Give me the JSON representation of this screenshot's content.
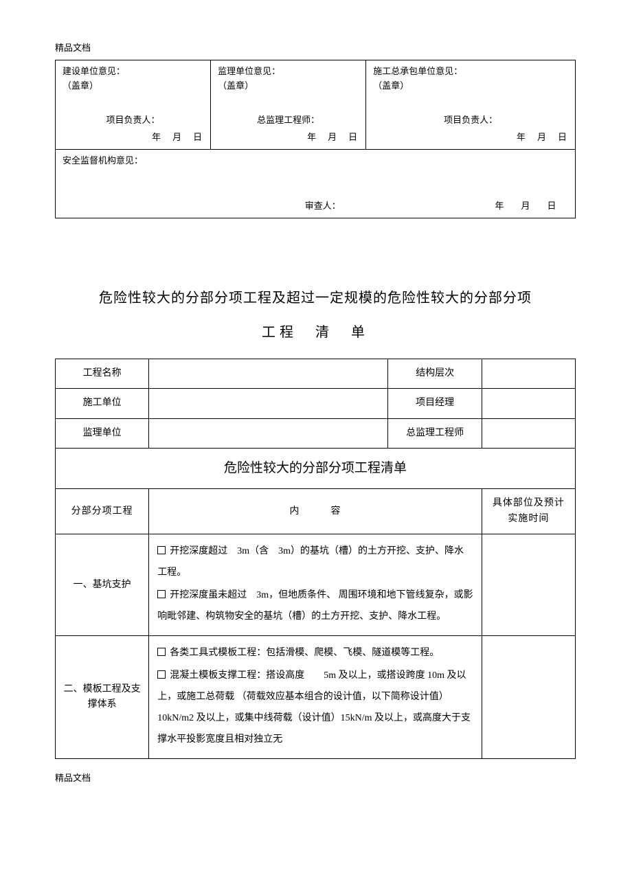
{
  "header": "精品文档",
  "footer": "精品文档",
  "approval": {
    "cells": [
      {
        "title": "建设单位意见：",
        "stamp": "（盖章）",
        "person": "项目负责人：",
        "date": "年　月　日"
      },
      {
        "title": "监理单位意见：",
        "stamp": "（盖章）",
        "person": "总监理工程师：",
        "date": "年　月　日"
      },
      {
        "title": "施工总承包单位意见：",
        "stamp": "（盖章）",
        "person": "项目负责人：",
        "date": "年　月　日"
      }
    ],
    "safety": {
      "title": "安全监督机构意见：",
      "reviewer": "审查人：",
      "date": "年　月　日"
    }
  },
  "title_line1": "危险性较大的分部分项工程及超过一定规模的危险性较大的分部分项",
  "title_line2": "工程　清　单",
  "info_rows": [
    {
      "l1": "工程名称",
      "l2": "结构层次"
    },
    {
      "l1": "施工单位",
      "l2": "项目经理"
    },
    {
      "l1": "监理单位",
      "l2": "总监理工程师"
    }
  ],
  "section_header": "危险性较大的分部分项工程清单",
  "columns": {
    "c1": "分部分项工程",
    "c2": "内　　　容",
    "c3": "具体部位及预计实施时间"
  },
  "rows": [
    {
      "name": "一、基坑支护",
      "items": [
        "开挖深度超过　3m（含　3m）的基坑（槽）的土方开挖、支护、降水工程。",
        "开挖深度虽未超过　3m，但地质条件、 周围环境和地下管线复杂，或影响毗邻建、构筑物安全的基坑（槽）的土方开挖、支护、降水工程。"
      ]
    },
    {
      "name": "二、模板工程及支撑体系",
      "items": [
        "各类工具式模板工程：包括滑模、爬模、飞模、隧道模等工程。",
        "混凝土模板支撑工程：搭设高度　　5m 及以上，或搭设跨度 10m 及以上，或施工总荷载 （荷载效应基本组合的设计值，以下简称设计值） 10kN/m2 及以上，或集中线荷载（设计值）15kN/m 及以上，或高度大于支撑水平投影宽度且相对独立无"
      ]
    }
  ]
}
